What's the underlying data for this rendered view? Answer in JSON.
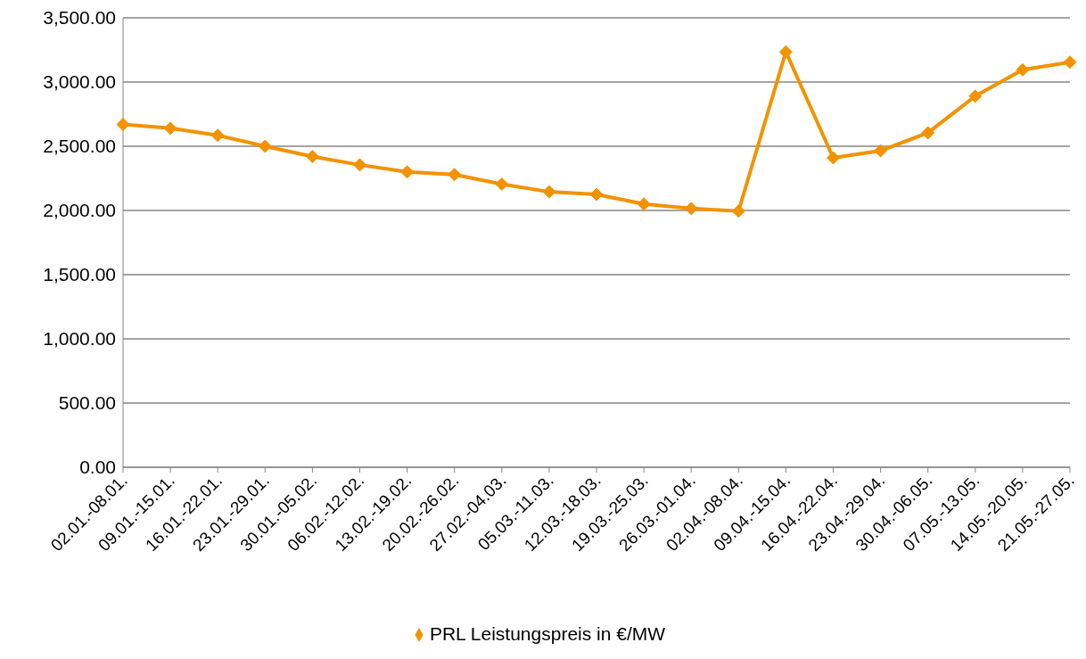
{
  "chart_data": {
    "type": "line",
    "categories": [
      "02.01.-08.01.",
      "09.01.-15.01.",
      "16.01.-22.01.",
      "23.01.-29.01.",
      "30.01.-05.02.",
      "06.02.-12.02.",
      "13.02.-19.02.",
      "20.02.-26.02.",
      "27.02.-04.03.",
      "05.03.-11.03.",
      "12.03.-18.03.",
      "19.03.-25.03.",
      "26.03.-01.04.",
      "02.04.-08.04.",
      "09.04.-15.04.",
      "16.04.-22.04.",
      "23.04.-29.04.",
      "30.04.-06.05.",
      "07.05.-13.05.",
      "14.05.-20.05.",
      "21.05.-27.05."
    ],
    "series": [
      {
        "name": "PRL Leistungspreis in €/MW",
        "color": "#f39200",
        "values": [
          2670,
          2640,
          2585,
          2500,
          2420,
          2355,
          2300,
          2280,
          2205,
          2145,
          2125,
          2050,
          2015,
          1995,
          3235,
          2410,
          2465,
          2605,
          2890,
          3095,
          3155
        ]
      }
    ],
    "ylim": [
      0,
      3500
    ],
    "yticks": [
      {
        "value": 0,
        "label": "0.00"
      },
      {
        "value": 500,
        "label": "500.00"
      },
      {
        "value": 1000,
        "label": "1,000.00"
      },
      {
        "value": 1500,
        "label": "1,500.00"
      },
      {
        "value": 2000,
        "label": "2,000.00"
      },
      {
        "value": 2500,
        "label": "2,500.00"
      },
      {
        "value": 3000,
        "label": "3,000.00"
      },
      {
        "value": 3500,
        "label": "3,500.00"
      }
    ],
    "grid": "y",
    "legend": "bottom",
    "marker": "diamond",
    "line_style": "solid"
  }
}
